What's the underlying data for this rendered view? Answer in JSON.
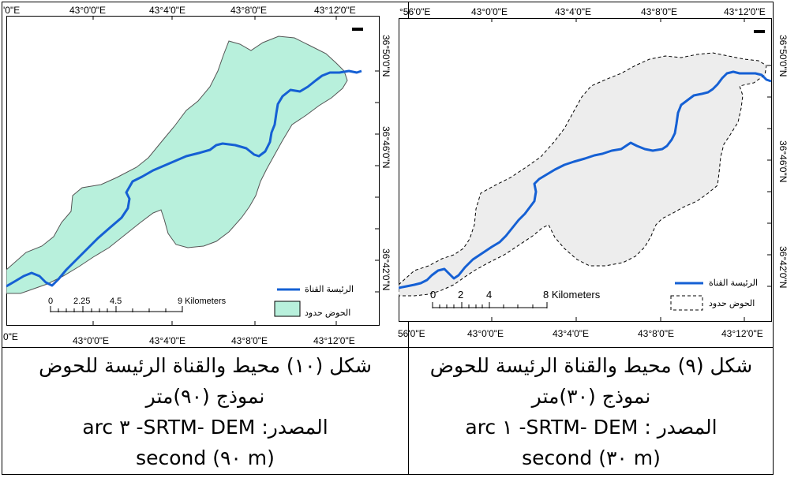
{
  "left_map": {
    "top_coords": [
      "'0\"E",
      "43°0'0\"E",
      "43°4'0\"E",
      "43°8'0\"E",
      "43°12'0\"E"
    ],
    "bottom_coords": [
      "0\"E",
      "43°0'0\"E",
      "43°4'0\"E",
      "43°8'0\"E",
      "43°12'0\"E"
    ],
    "right_coords": [
      "36°50'0\"N",
      "36°46'0\"N",
      "36°42'0\"N"
    ],
    "legend": {
      "channel": "الرئيسة القناة",
      "basin": "الحوض حدود"
    },
    "scale": {
      "ticks": [
        "0",
        "2.25",
        "4.5",
        "9 Kilometers"
      ]
    },
    "colors": {
      "basin_fill": "#b8f0dc",
      "channel": "#1560d4"
    }
  },
  "right_map": {
    "top_coords": [
      "°56'0\"E",
      "43°0'0\"E",
      "43°4'0\"E",
      "43°8'0\"E",
      "43°12'0\"E"
    ],
    "bottom_coords": [
      "56'0\"E",
      "43°0'0\"E",
      "43°4'0\"E",
      "43°8'0\"E",
      "43°12'0\"E"
    ],
    "right_coords": [
      "36°50'0\"N",
      "36°46'0\"N",
      "36°42'0\"N"
    ],
    "legend": {
      "channel": "الرئيسة القناة",
      "basin": "الحوض حدود"
    },
    "scale": {
      "ticks": [
        "0",
        "2",
        "4",
        "8 Kilometers"
      ]
    },
    "colors": {
      "basin_fill": "#ededed",
      "channel": "#1560d4"
    }
  },
  "captions": {
    "left": {
      "line1": "شكل (١٠) محيط والقناة الرئيسة للحوض",
      "line2": "نموذج (٩٠)متر",
      "line3": "المصدر: SRTM- DEM- ٣ arc",
      "line4": "second (٩٠ m)"
    },
    "right": {
      "line1": "شكل (٩) محيط والقناة الرئيسة للحوض",
      "line2": "نموذج (٣٠)متر",
      "line3": "المصدر : SRTM- DEM- ١ arc",
      "line4": "second (٣٠ m)"
    }
  }
}
